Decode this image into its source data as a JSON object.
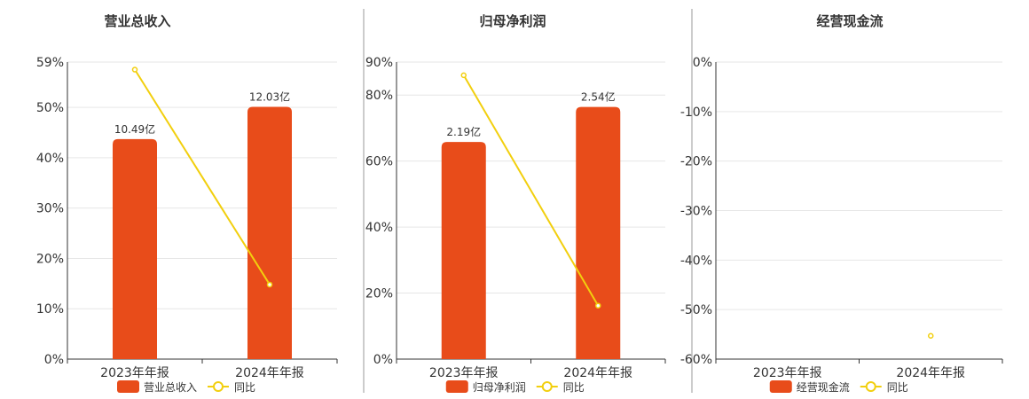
{
  "colors": {
    "bar": "#e84c1a",
    "line": "#f2cf0e",
    "grid": "#e6e6e6",
    "axis": "#333333",
    "divider": "#999999"
  },
  "chart_data": [
    {
      "type": "bar",
      "title": "营业总收入",
      "categories": [
        "2023年年报",
        "2024年年报"
      ],
      "bar_series": {
        "name": "营业总收入",
        "values": [
          43.7,
          50.1
        ],
        "labels": [
          "10.49亿",
          "12.03亿"
        ]
      },
      "line_series": {
        "name": "同比",
        "values": [
          57.5,
          14.8
        ]
      },
      "yticks": [
        "0%",
        "10%",
        "20%",
        "30%",
        "40%",
        "50%",
        "59%"
      ],
      "ylim": [
        0,
        59
      ]
    },
    {
      "type": "bar",
      "title": "归母净利润",
      "categories": [
        "2023年年报",
        "2024年年报"
      ],
      "bar_series": {
        "name": "归母净利润",
        "values": [
          65.8,
          76.4
        ],
        "labels": [
          "2.19亿",
          "2.54亿"
        ]
      },
      "line_series": {
        "name": "同比",
        "values": [
          86.0,
          16.2
        ]
      },
      "yticks": [
        "0%",
        "20%",
        "40%",
        "60%",
        "80%",
        "90%"
      ],
      "ylim": [
        0,
        90
      ]
    },
    {
      "type": "bar",
      "title": "经营现金流",
      "categories": [
        "2023年年报",
        "2024年年报"
      ],
      "bar_series": {
        "name": "经营现金流",
        "values": [
          null,
          null
        ],
        "labels": [
          "",
          ""
        ]
      },
      "line_series": {
        "name": "同比",
        "values": [
          null,
          -55.3
        ]
      },
      "yticks": [
        "0%",
        "-10%",
        "-20%",
        "-30%",
        "-40%",
        "-50%",
        "-60%"
      ],
      "ylim": [
        -60,
        0
      ]
    }
  ]
}
